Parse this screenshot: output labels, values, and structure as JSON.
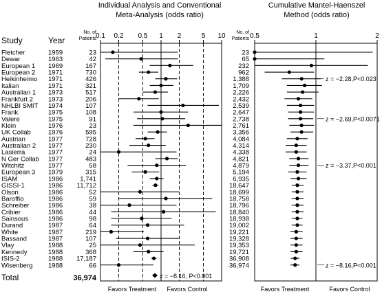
{
  "left_panel": {
    "title_line1": "Individual Analysis and Conventional",
    "title_line2": "Meta-Analysis (odds ratio)",
    "col_study": "Study",
    "col_year": "Year",
    "col_n_line1": "No. of",
    "col_n_line2": "Patients",
    "favors_left": "Favors Treatment",
    "favors_right": "Favors Control",
    "total_label": "Total",
    "total_n": "36,974",
    "total_annotation": "z = −8.16, P<0.001"
  },
  "right_panel": {
    "title_line1": "Cumulative Mantel-Haenszel",
    "title_line2": "Method (odds ratio)",
    "col_n_line1": "No. of",
    "col_n_line2": "Patients",
    "favors_left": "Favors Treatment",
    "favors_right": "Favors Control",
    "annotations": [
      {
        "text": "z = −2.28,P<0.023",
        "row": 4
      },
      {
        "text": "z = −2.69,P<0.0071",
        "row": 10
      },
      {
        "text": "z = −3.37,P<0.001",
        "row": 17
      },
      {
        "text": "z = −8.16,P<0.001",
        "row": 32
      }
    ]
  },
  "chart_data": [
    {
      "type": "forest",
      "title": "Individual Analysis and Conventional Meta-Analysis (odds ratio)",
      "scale": "log",
      "xlim": [
        0.1,
        10
      ],
      "xticks": [
        {
          "v": 0.1,
          "label": "0.1"
        },
        {
          "v": 0.2,
          "label": "0.2"
        },
        {
          "v": 0.5,
          "label": "0.5"
        },
        {
          "v": 1,
          "label": "1"
        },
        {
          "v": 2,
          "label": "2"
        },
        {
          "v": 5,
          "label": "5"
        },
        {
          "v": 10,
          "label": "10"
        }
      ],
      "dashed_lines": [
        0.2,
        0.5,
        2,
        5
      ],
      "reference_line": 1,
      "rows": [
        {
          "study": "Fletcher",
          "year": "1959",
          "n": "23",
          "or": 0.16,
          "lo": 0.04,
          "hi": 1.9
        },
        {
          "study": "Dewar",
          "year": "1963",
          "n": "42",
          "or": 0.47,
          "lo": 0.12,
          "hi": 1.9
        },
        {
          "study": "European 1",
          "year": "1969",
          "n": "167",
          "or": 1.4,
          "lo": 0.65,
          "hi": 3.4
        },
        {
          "study": "European 2",
          "year": "1971",
          "n": "730",
          "or": 0.62,
          "lo": 0.43,
          "hi": 0.9
        },
        {
          "study": "Heikinheimo",
          "year": "1971",
          "n": "426",
          "or": 1.2,
          "lo": 0.8,
          "hi": 1.85
        },
        {
          "study": "Italian",
          "year": "1971",
          "n": "321",
          "or": 1.0,
          "lo": 0.65,
          "hi": 1.6
        },
        {
          "study": "Australian 1",
          "year": "1973",
          "n": "517",
          "or": 0.8,
          "lo": 0.5,
          "hi": 1.3
        },
        {
          "study": "Frankfurt 2",
          "year": "1973",
          "n": "206",
          "or": 0.43,
          "lo": 0.2,
          "hi": 0.92
        },
        {
          "study": "NHLBI SMIT",
          "year": "1974",
          "n": "107",
          "or": 2.3,
          "lo": 0.6,
          "hi": 9.0
        },
        {
          "study": "Frank",
          "year": "1975",
          "n": "108",
          "or": 1.0,
          "lo": 0.35,
          "hi": 2.8
        },
        {
          "study": "Valere",
          "year": "1975",
          "n": "91",
          "or": 1.05,
          "lo": 0.4,
          "hi": 2.5
        },
        {
          "study": "Klein",
          "year": "1976",
          "n": "23",
          "or": 2.8,
          "lo": 0.35,
          "hi": 14
        },
        {
          "study": "UK Collab",
          "year": "1976",
          "n": "595",
          "or": 0.88,
          "lo": 0.6,
          "hi": 1.25
        },
        {
          "study": "Austrian",
          "year": "1977",
          "n": "728",
          "or": 0.55,
          "lo": 0.38,
          "hi": 0.78
        },
        {
          "study": "Australian 2",
          "year": "1977",
          "n": "230",
          "or": 0.62,
          "lo": 0.3,
          "hi": 1.2
        },
        {
          "study": "Lasierra",
          "year": "1977",
          "n": "24",
          "or": 0.2,
          "lo": 0.02,
          "hi": 1.8
        },
        {
          "study": "N Ger Collab",
          "year": "1977",
          "n": "483",
          "or": 1.25,
          "lo": 0.8,
          "hi": 1.9
        },
        {
          "study": "Witchitz",
          "year": "1977",
          "n": "58",
          "or": 0.85,
          "lo": 0.28,
          "hi": 2.6
        },
        {
          "study": "European 3",
          "year": "1979",
          "n": "315",
          "or": 0.55,
          "lo": 0.33,
          "hi": 0.93
        },
        {
          "study": "ISAM",
          "year": "1986",
          "n": "1,741",
          "or": 0.85,
          "lo": 0.65,
          "hi": 1.1
        },
        {
          "study": "GISSI-1",
          "year": "1986",
          "n": "11,712",
          "or": 0.81,
          "lo": 0.72,
          "hi": 0.9
        },
        {
          "study": "Olson",
          "year": "1986",
          "n": "52",
          "or": 0.45,
          "lo": 0.1,
          "hi": 2.0
        },
        {
          "study": "Baroffio",
          "year": "1986",
          "n": "59",
          "or": 1.2,
          "lo": 0.2,
          "hi": 7.0
        },
        {
          "study": "Schreiber",
          "year": "1986",
          "n": "38",
          "or": 0.3,
          "lo": 0.05,
          "hi": 1.8
        },
        {
          "study": "Cribier",
          "year": "1986",
          "n": "44",
          "or": 1.1,
          "lo": 0.15,
          "hi": 8.0
        },
        {
          "study": "Sainsous",
          "year": "1986",
          "n": "98",
          "or": 0.48,
          "lo": 0.15,
          "hi": 1.5
        },
        {
          "study": "Durand",
          "year": "1987",
          "n": "64",
          "or": 0.6,
          "lo": 0.15,
          "hi": 2.4
        },
        {
          "study": "White",
          "year": "1987",
          "n": "219",
          "or": 0.15,
          "lo": 0.05,
          "hi": 0.52
        },
        {
          "study": "Bassand",
          "year": "1987",
          "n": "107",
          "or": 0.6,
          "lo": 0.18,
          "hi": 2.0
        },
        {
          "study": "Vlay",
          "year": "1988",
          "n": "25",
          "or": 0.45,
          "lo": 0.05,
          "hi": 3.6
        },
        {
          "study": "Kennedy",
          "year": "1988",
          "n": "368",
          "or": 0.62,
          "lo": 0.35,
          "hi": 1.1
        },
        {
          "study": "ISIS-2",
          "year": "1988",
          "n": "17,187",
          "or": 0.76,
          "lo": 0.69,
          "hi": 0.84
        },
        {
          "study": "Wisenberg",
          "year": "1988",
          "n": "66",
          "or": 0.2,
          "lo": 0.06,
          "hi": 0.75
        }
      ],
      "total": {
        "n": "36,974",
        "or": 0.79,
        "lo": 0.75,
        "hi": 0.84
      },
      "xlabel_left": "Favors Treatment",
      "xlabel_right": "Favors Control"
    },
    {
      "type": "forest",
      "title": "Cumulative Mantel-Haenszel Method (odds ratio)",
      "scale": "log",
      "xlim": [
        0.5,
        2
      ],
      "xticks": [
        {
          "v": 0.5,
          "label": "0.5"
        },
        {
          "v": 1,
          "label": "1"
        },
        {
          "v": 2,
          "label": "2"
        }
      ],
      "reference_line": 1,
      "rows": [
        {
          "n": "23",
          "or": 0.16,
          "lo": 0.04,
          "hi": 1.9
        },
        {
          "n": "65",
          "or": 0.32,
          "lo": 0.1,
          "hi": 1.1
        },
        {
          "n": "232",
          "or": 0.95,
          "lo": 0.5,
          "hi": 1.8
        },
        {
          "n": "962",
          "or": 0.74,
          "lo": 0.56,
          "hi": 0.98
        },
        {
          "n": "1,388",
          "or": 0.85,
          "lo": 0.68,
          "hi": 1.06
        },
        {
          "n": "1,709",
          "or": 0.88,
          "lo": 0.72,
          "hi": 1.07
        },
        {
          "n": "2,226",
          "or": 0.86,
          "lo": 0.72,
          "hi": 1.03
        },
        {
          "n": "2,432",
          "or": 0.82,
          "lo": 0.7,
          "hi": 0.96
        },
        {
          "n": "2,539",
          "or": 0.84,
          "lo": 0.72,
          "hi": 0.98
        },
        {
          "n": "2,647",
          "or": 0.84,
          "lo": 0.73,
          "hi": 0.98
        },
        {
          "n": "2,738",
          "or": 0.84,
          "lo": 0.73,
          "hi": 0.97
        },
        {
          "n": "2,761",
          "or": 0.85,
          "lo": 0.74,
          "hi": 0.98
        },
        {
          "n": "3,356",
          "or": 0.85,
          "lo": 0.75,
          "hi": 0.97
        },
        {
          "n": "4,084",
          "or": 0.81,
          "lo": 0.72,
          "hi": 0.91
        },
        {
          "n": "4,314",
          "or": 0.8,
          "lo": 0.71,
          "hi": 0.9
        },
        {
          "n": "4,338",
          "or": 0.8,
          "lo": 0.71,
          "hi": 0.9
        },
        {
          "n": "4,821",
          "or": 0.82,
          "lo": 0.74,
          "hi": 0.92
        },
        {
          "n": "4,879",
          "or": 0.82,
          "lo": 0.74,
          "hi": 0.92
        },
        {
          "n": "5,194",
          "or": 0.81,
          "lo": 0.73,
          "hi": 0.9
        },
        {
          "n": "6,935",
          "or": 0.82,
          "lo": 0.75,
          "hi": 0.9
        },
        {
          "n": "18,647",
          "or": 0.81,
          "lo": 0.76,
          "hi": 0.87
        },
        {
          "n": "18,699",
          "or": 0.81,
          "lo": 0.76,
          "hi": 0.87
        },
        {
          "n": "18,758",
          "or": 0.81,
          "lo": 0.76,
          "hi": 0.87
        },
        {
          "n": "18,796",
          "or": 0.81,
          "lo": 0.76,
          "hi": 0.87
        },
        {
          "n": "18,840",
          "or": 0.81,
          "lo": 0.76,
          "hi": 0.87
        },
        {
          "n": "18,938",
          "or": 0.81,
          "lo": 0.76,
          "hi": 0.86
        },
        {
          "n": "19,002",
          "or": 0.81,
          "lo": 0.76,
          "hi": 0.86
        },
        {
          "n": "19,221",
          "or": 0.8,
          "lo": 0.75,
          "hi": 0.86
        },
        {
          "n": "19,328",
          "or": 0.8,
          "lo": 0.75,
          "hi": 0.86
        },
        {
          "n": "19,353",
          "or": 0.8,
          "lo": 0.75,
          "hi": 0.86
        },
        {
          "n": "19,721",
          "or": 0.8,
          "lo": 0.75,
          "hi": 0.86
        },
        {
          "n": "36,908",
          "or": 0.79,
          "lo": 0.75,
          "hi": 0.83
        },
        {
          "n": "36,974",
          "or": 0.79,
          "lo": 0.75,
          "hi": 0.83
        }
      ],
      "xlabel_left": "Favors Treatment",
      "xlabel_right": "Favors Control"
    }
  ]
}
